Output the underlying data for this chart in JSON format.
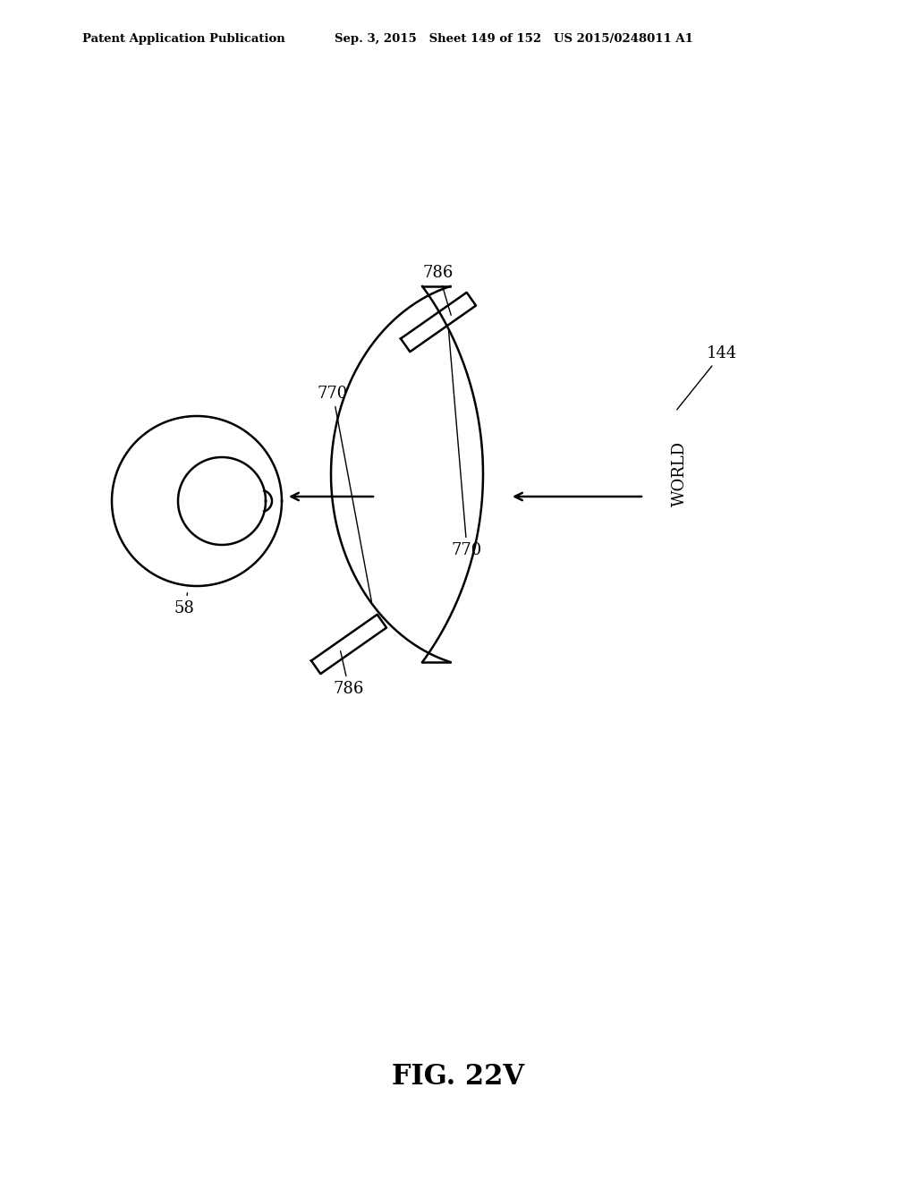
{
  "background_color": "#ffffff",
  "header_left": "Patent Application Publication",
  "header_mid": "Sep. 3, 2015   Sheet 149 of 152   US 2015/0248011 A1",
  "figure_label": "FIG. 22V",
  "line_color": "#000000",
  "line_width": 1.8
}
